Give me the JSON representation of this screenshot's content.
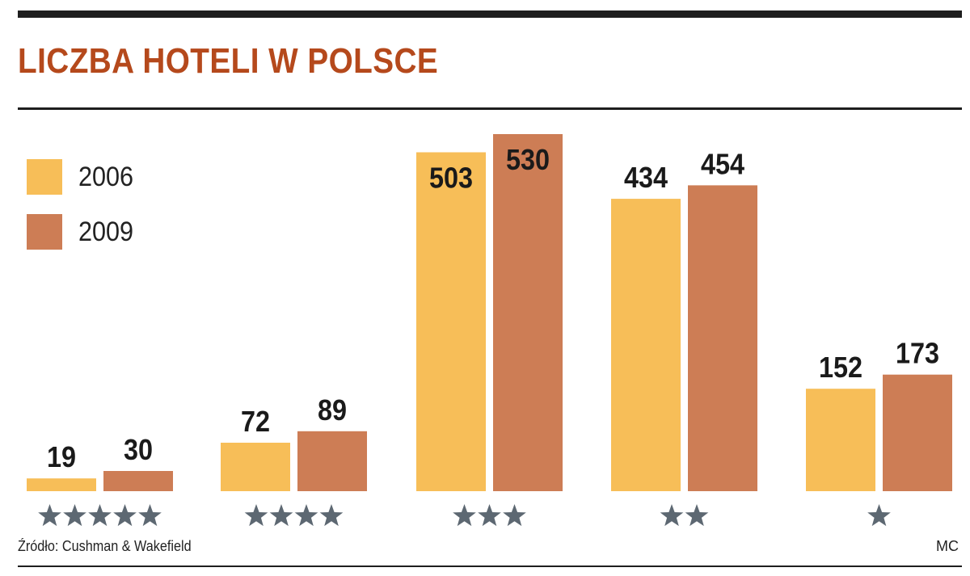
{
  "header": {
    "title": "LICZBA HOTELI W POLSCE"
  },
  "footer": {
    "source": "Źródło: Cushman & Wakefield",
    "credit": "MC"
  },
  "colors": {
    "title": "#b5491c",
    "series_2006": "#f7be58",
    "series_2009": "#cd7d55",
    "star": "#5d6872"
  },
  "chart_data": {
    "type": "bar",
    "categories": [
      "★★★★★",
      "★★★★",
      "★★★",
      "★★",
      "★"
    ],
    "category_star_counts": [
      5,
      4,
      3,
      2,
      1
    ],
    "series": [
      {
        "name": "2006",
        "values": [
          19,
          72,
          503,
          434,
          152
        ]
      },
      {
        "name": "2009",
        "values": [
          30,
          89,
          530,
          454,
          173
        ]
      }
    ],
    "legend": [
      "2006",
      "2009"
    ],
    "legend_position": "top-left",
    "ylim": [
      0,
      530
    ],
    "grid": false,
    "value_labels": true
  }
}
